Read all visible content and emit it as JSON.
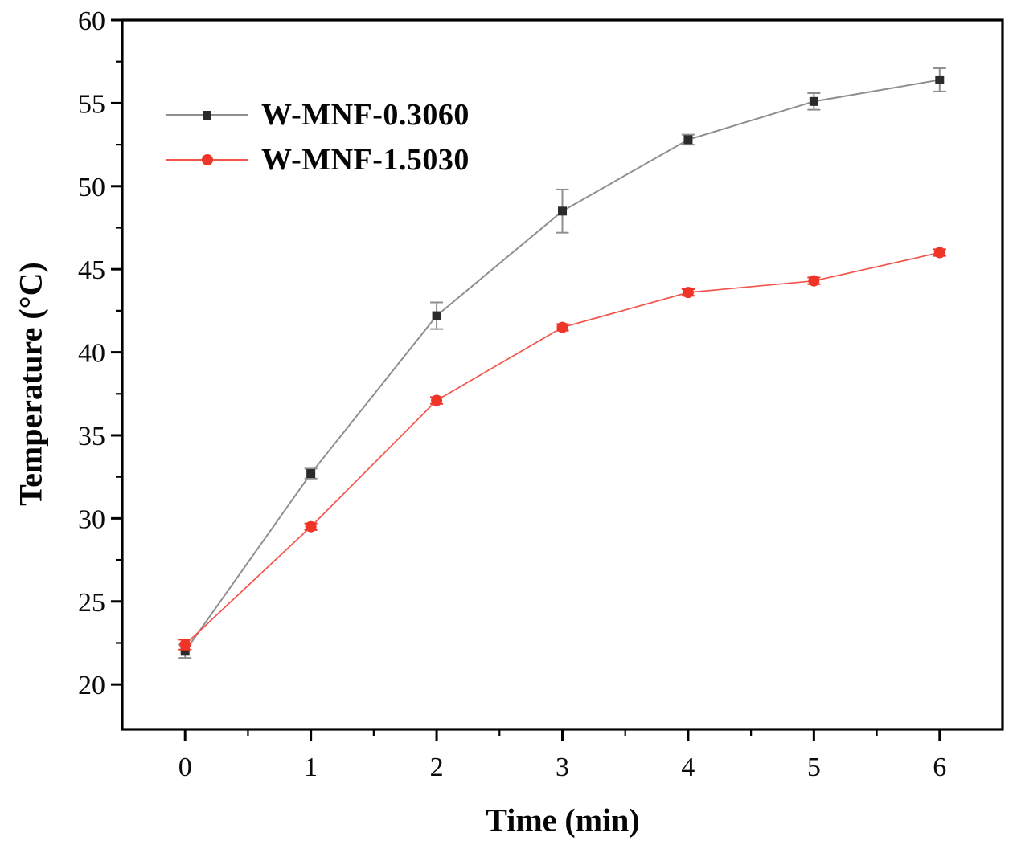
{
  "figure": {
    "background": "#ffffff",
    "frame_color": "#000000"
  },
  "chart_data": {
    "type": "line",
    "title": "",
    "xlabel": "Time (min)",
    "ylabel": "Temperature (°C)",
    "x": [
      0,
      1,
      2,
      3,
      4,
      5,
      6
    ],
    "xlim": [
      -0.5,
      6.5
    ],
    "ylim": [
      17.3,
      60
    ],
    "x_major_ticks": [
      0,
      1,
      2,
      3,
      4,
      5,
      6
    ],
    "y_major_ticks": [
      20,
      25,
      30,
      35,
      40,
      45,
      50,
      55,
      60
    ],
    "minor_ticks": true,
    "grid": false,
    "legend_position": "upper-left-inside",
    "series": [
      {
        "name": "W-MNF-0.3060",
        "marker": "square",
        "marker_color": "#2b2b2b",
        "line_color": "#8f8f8f",
        "error_color": "#8f8f8f",
        "values": [
          22.0,
          32.7,
          42.2,
          48.5,
          52.8,
          55.1,
          56.4
        ],
        "errors": [
          0.4,
          0.3,
          0.8,
          1.3,
          0.3,
          0.5,
          0.7
        ]
      },
      {
        "name": "W-MNF-1.5030",
        "marker": "circle",
        "marker_color": "#ee3528",
        "line_color": "#f2544b",
        "error_color": "#ee3528",
        "values": [
          22.4,
          29.5,
          37.1,
          41.5,
          43.6,
          44.3,
          46.0
        ],
        "errors": [
          0.3,
          0.2,
          0.2,
          0.2,
          0.2,
          0.2,
          0.2
        ]
      }
    ]
  }
}
